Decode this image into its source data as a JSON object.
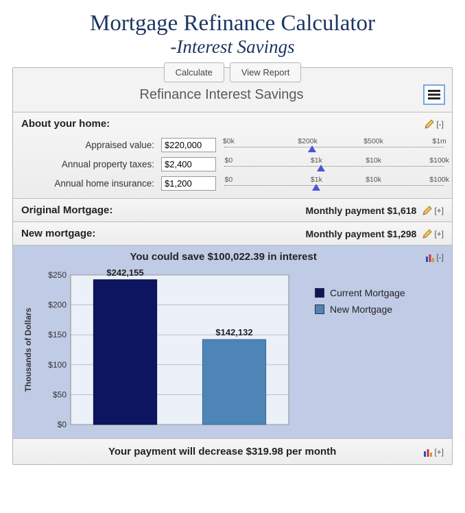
{
  "page": {
    "title": "Mortgage Refinance Calculator",
    "subtitle": "-Interest Savings"
  },
  "toolbar": {
    "calculate": "Calculate",
    "view_report": "View Report"
  },
  "calc_title": "Refinance Interest Savings",
  "about": {
    "title": "About your home:",
    "toggle": "[-]",
    "rows": [
      {
        "label": "Appraised value:",
        "value": "$220,000",
        "ticks": [
          "$0k",
          "$200k",
          "$500k",
          "$1m"
        ],
        "tick_positions_pct": [
          2,
          38,
          68,
          98
        ],
        "marker_pct": 40
      },
      {
        "label": "Annual property taxes:",
        "value": "$2,400",
        "ticks": [
          "$0",
          "$1k",
          "$10k",
          "$100k"
        ],
        "tick_positions_pct": [
          2,
          42,
          68,
          98
        ],
        "marker_pct": 44
      },
      {
        "label": "Annual home insurance:",
        "value": "$1,200",
        "ticks": [
          "$0",
          "$1k",
          "$10k",
          "$100k"
        ],
        "tick_positions_pct": [
          2,
          42,
          68,
          98
        ],
        "marker_pct": 42
      }
    ]
  },
  "original": {
    "title": "Original Mortgage:",
    "right": "Monthly payment $1,618",
    "toggle": "[+]"
  },
  "newmort": {
    "title": "New mortgage:",
    "right": "Monthly payment $1,298",
    "toggle": "[+]"
  },
  "savings": {
    "headline": "You could save $100,022.39 in interest",
    "toggle": "[-]"
  },
  "chart": {
    "type": "bar",
    "y_label": "Thousands of Dollars",
    "y_max": 250,
    "y_tick_step": 50,
    "y_ticks": [
      "$0",
      "$50",
      "$100",
      "$150",
      "$200",
      "$250"
    ],
    "plot_bg": "#ecf0f9",
    "grid_color": "#9aa",
    "bars": [
      {
        "label": "$242,155",
        "value": 242.155,
        "color": "#0e1560",
        "border": "#0a0f40"
      },
      {
        "label": "$142,132",
        "value": 142.132,
        "color": "#4c85b6",
        "border": "#3a688f"
      }
    ],
    "legend": [
      {
        "label": "Current Mortgage",
        "color": "#0e1560"
      },
      {
        "label": "New Mortgage",
        "color": "#4c85b6"
      }
    ]
  },
  "footer": {
    "message": "Your payment will decrease $319.98 per month",
    "toggle": "[+]"
  }
}
